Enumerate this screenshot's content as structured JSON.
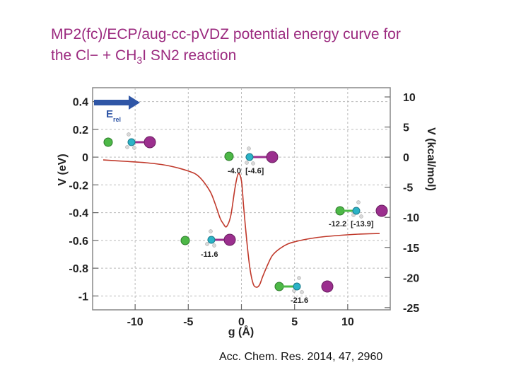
{
  "slide": {
    "title_line1": "MP2(fc)/ECP/aug-cc-pVDZ potential energy curve for",
    "title_line2_pre": "the Cl− + CH",
    "title_line2_sub": "3",
    "title_line2_post": "I SN2 reaction",
    "citation": "Acc. Chem. Res. 2014, 47, 2960"
  },
  "chart_data": {
    "type": "line",
    "xlabel": "g (Å)",
    "ylabel_left": "V (eV)",
    "ylabel_right": "V (kcal/mol)",
    "xlim": [
      -14,
      14
    ],
    "ylim": [
      -1.1,
      0.5
    ],
    "xticks": [
      -10,
      -5,
      0,
      5,
      10
    ],
    "yticks_left": [
      0.4,
      0.2,
      0,
      -0.2,
      -0.4,
      -0.6,
      -0.8,
      -1
    ],
    "yticks_right": [
      10,
      5,
      0,
      -5,
      -10,
      -15,
      -20,
      -25
    ],
    "grid": true,
    "line_color": "#c0392b",
    "series": [
      {
        "x": [
          -13.0,
          -11.0,
          -9.0,
          -7.0,
          -5.0,
          -4.0,
          -3.0,
          -2.5,
          -2.0,
          -1.7,
          -1.4,
          -1.0,
          -0.6,
          -0.3,
          0.0,
          0.2,
          0.5,
          0.8,
          1.1,
          1.4,
          1.7,
          2.0,
          2.5,
          3.0,
          4.0,
          5.0,
          7.0,
          9.0,
          11.0,
          13.0
        ],
        "y": [
          -0.02,
          -0.03,
          -0.04,
          -0.06,
          -0.1,
          -0.14,
          -0.24,
          -0.33,
          -0.44,
          -0.48,
          -0.5,
          -0.42,
          -0.22,
          -0.12,
          -0.17,
          -0.35,
          -0.6,
          -0.8,
          -0.91,
          -0.937,
          -0.92,
          -0.86,
          -0.77,
          -0.7,
          -0.64,
          -0.61,
          -0.58,
          -0.565,
          -0.555,
          -0.55
        ]
      }
    ],
    "annotations": [
      {
        "label": "E",
        "sub": "rel"
      },
      {
        "label": "-4.0  [-4.6]"
      },
      {
        "label": "-11.6"
      },
      {
        "label": "-21.6"
      },
      {
        "label": "-12.2  [-13.9]"
      }
    ],
    "colors": {
      "chlorine": "#4db847",
      "carbon": "#2bb3c7",
      "iodine": "#9b2f8e",
      "hydrogen": "#d9d9d9",
      "arrow": "#2f56a6"
    }
  }
}
